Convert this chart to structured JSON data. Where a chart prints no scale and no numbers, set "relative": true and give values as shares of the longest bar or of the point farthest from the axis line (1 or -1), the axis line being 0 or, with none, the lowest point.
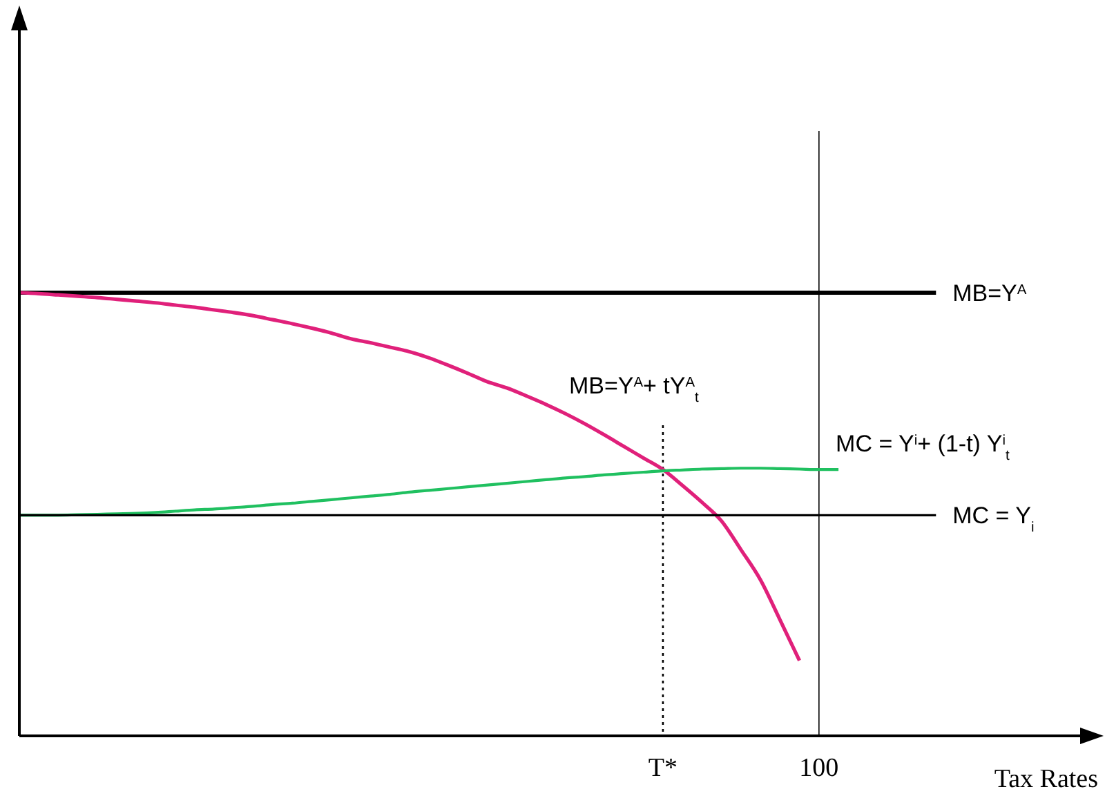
{
  "chart_data": {
    "type": "line",
    "relative": true,
    "xlabel": "Tax Rates",
    "tick_labels": "x",
    "grid": false,
    "legend": false,
    "marker": "none",
    "categories": [
      null,
      null,
      null,
      null,
      null,
      null,
      null,
      null,
      null,
      null,
      null,
      null,
      null,
      null,
      null,
      null,
      null,
      null,
      null,
      null,
      null,
      null,
      null,
      null,
      null,
      null,
      null,
      null,
      null,
      null,
      null,
      null,
      null,
      "T*",
      null,
      null,
      null,
      null,
      null,
      null,
      null,
      "100",
      null,
      null,
      null,
      null,
      null,
      null,
      null,
      null,
      null,
      null,
      null,
      null,
      null,
      null
    ],
    "series": [
      {
        "name": "MB=Y$^{A}$",
        "color": "#000000",
        "values": [
          1,
          1,
          1,
          1,
          1,
          1,
          1,
          1,
          1,
          1,
          1,
          1,
          1,
          1,
          1,
          1,
          1,
          1,
          1,
          1,
          1,
          1,
          1,
          1,
          1,
          1,
          1,
          1,
          1,
          1,
          1,
          1,
          1,
          1,
          1,
          1,
          1,
          1,
          1,
          1,
          1,
          1,
          1,
          1,
          1,
          1,
          1,
          1,
          null,
          null,
          null,
          null,
          null,
          null,
          null,
          null
        ]
      },
      {
        "name": "MB=Y$^{A}$+ tY$^{A}$$_{t}$",
        "color": "#e0207a",
        "values": [
          1,
          0.998,
          0.995,
          0.992,
          0.989,
          0.985,
          0.981,
          0.977,
          0.972,
          0.967,
          0.961,
          0.955,
          0.948,
          0.939,
          0.93,
          0.92,
          0.909,
          0.896,
          0.887,
          0.877,
          0.867,
          0.853,
          0.836,
          0.818,
          0.799,
          0.785,
          0.767,
          0.748,
          0.727,
          0.704,
          0.679,
          0.653,
          0.627,
          0.601,
          0.565,
          0.527,
          0.485,
          0.42,
          0.352,
          0.262,
          0.17,
          null,
          null,
          null,
          null,
          null,
          null,
          null,
          null,
          null,
          null,
          null,
          null,
          null,
          null,
          null
        ]
      },
      {
        "name": "MC = Y$^{i}$+ (1-t) Y$^{i}$$_{t}$",
        "color": "#20c060",
        "values": [
          0.498,
          0.498,
          0.498,
          0.499,
          0.5,
          0.501,
          0.502,
          0.504,
          0.507,
          0.51,
          0.512,
          0.515,
          0.518,
          0.522,
          0.525,
          0.529,
          0.533,
          0.537,
          0.541,
          0.545,
          0.55,
          0.554,
          0.558,
          0.562,
          0.566,
          0.57,
          0.574,
          0.578,
          0.582,
          0.585,
          0.589,
          0.592,
          0.595,
          0.598,
          0.6,
          0.602,
          0.603,
          0.604,
          0.604,
          0.603,
          0.602,
          0.601,
          0.601,
          null,
          null,
          null,
          null,
          null,
          null,
          null,
          null,
          null,
          null,
          null,
          null,
          null
        ]
      },
      {
        "name": "MC = Y$_{i}$",
        "color": "#000000",
        "values": [
          0.498,
          0.498,
          0.498,
          0.498,
          0.498,
          0.498,
          0.498,
          0.498,
          0.498,
          0.498,
          0.498,
          0.498,
          0.498,
          0.498,
          0.498,
          0.498,
          0.498,
          0.498,
          0.498,
          0.498,
          0.498,
          0.498,
          0.498,
          0.498,
          0.498,
          0.498,
          0.498,
          0.498,
          0.498,
          0.498,
          0.498,
          0.498,
          0.498,
          0.498,
          0.498,
          0.498,
          0.498,
          0.498,
          0.498,
          0.498,
          0.498,
          0.498,
          0.498,
          0.498,
          0.498,
          0.498,
          0.498,
          0.498,
          null,
          null,
          null,
          null,
          null,
          null,
          null,
          null
        ]
      }
    ],
    "ref_lines": [
      {
        "axis": "x",
        "value": "100",
        "line_style": "solid",
        "color": "#000000"
      },
      {
        "axis": "x",
        "value": "T*",
        "line_style": "dotted",
        "color": "#000000"
      }
    ]
  }
}
